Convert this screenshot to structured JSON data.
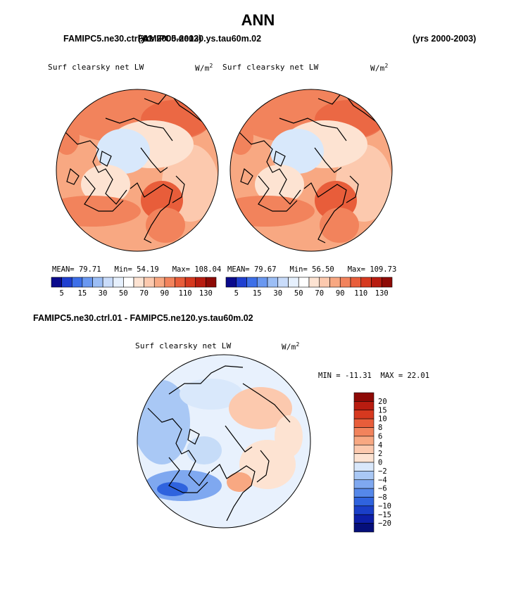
{
  "page": {
    "title": "ANN",
    "case_left": "FAMIPC5.ne30.ctrl.01",
    "case_left_years": "(yrs 2000-2003)",
    "case_right": "FAMIPC5.ne120.ys.tau60m.02",
    "case_right_years": "(yrs 2000-2003)",
    "diff_title": "FAMIPC5.ne30.ctrl.01 - FAMIPC5.ne120.ys.tau60m.02"
  },
  "chart_data": [
    {
      "type": "heatmap",
      "projection": "polar-stereographic-north",
      "title": "Surf clearsky net LW",
      "units": "W/m",
      "units_exp": "2",
      "stats": {
        "mean_label": "MEAN=",
        "mean": "79.71",
        "min_label": "Min=",
        "min": "54.19",
        "max_label": "Max=",
        "max": "108.04"
      },
      "colorbar": {
        "orientation": "horizontal",
        "levels": [
          "5",
          "15",
          "30",
          "50",
          "70",
          "90",
          "110",
          "130"
        ],
        "colors": [
          "#0a0a8c",
          "#1f3fd0",
          "#3d6fe8",
          "#6a98f0",
          "#9cbef5",
          "#c9dcfa",
          "#e6f0fd",
          "#ffffff",
          "#fde3d2",
          "#fcc9ae",
          "#f8a882",
          "#f2835c",
          "#e85d3a",
          "#d6391f",
          "#b81c10",
          "#8e0a06"
        ]
      }
    },
    {
      "type": "heatmap",
      "projection": "polar-stereographic-north",
      "title": "Surf clearsky net LW",
      "units": "W/m",
      "units_exp": "2",
      "stats": {
        "mean_label": "MEAN=",
        "mean": "79.67",
        "min_label": "Min=",
        "min": "56.50",
        "max_label": "Max=",
        "max": "109.73"
      },
      "colorbar": {
        "orientation": "horizontal",
        "levels": [
          "5",
          "15",
          "30",
          "50",
          "70",
          "90",
          "110",
          "130"
        ],
        "colors": [
          "#0a0a8c",
          "#1f3fd0",
          "#3d6fe8",
          "#6a98f0",
          "#9cbef5",
          "#c9dcfa",
          "#e6f0fd",
          "#ffffff",
          "#fde3d2",
          "#fcc9ae",
          "#f8a882",
          "#f2835c",
          "#e85d3a",
          "#d6391f",
          "#b81c10",
          "#8e0a06"
        ]
      }
    },
    {
      "type": "heatmap",
      "projection": "polar-stereographic-north",
      "title": "Surf clearsky net LW",
      "units": "W/m",
      "units_exp": "2",
      "stats": {
        "min_label": "MIN =",
        "min": "-11.31",
        "max_label": "MAX =",
        "max": "22.01"
      },
      "colorbar": {
        "orientation": "vertical",
        "levels": [
          "20",
          "15",
          "10",
          "8",
          "6",
          "4",
          "2",
          "0",
          "−2",
          "−4",
          "−6",
          "−8",
          "−10",
          "−15",
          "−20"
        ],
        "colors": [
          "#8e0a06",
          "#b81c10",
          "#d6391f",
          "#e85d3a",
          "#f2835c",
          "#f8a882",
          "#fcc9ae",
          "#fde3d2",
          "#d9e8fb",
          "#a9c8f5",
          "#7fa8f0",
          "#5588ea",
          "#2f63de",
          "#1a3fc8",
          "#0d1fa8",
          "#050f7a"
        ]
      }
    }
  ]
}
